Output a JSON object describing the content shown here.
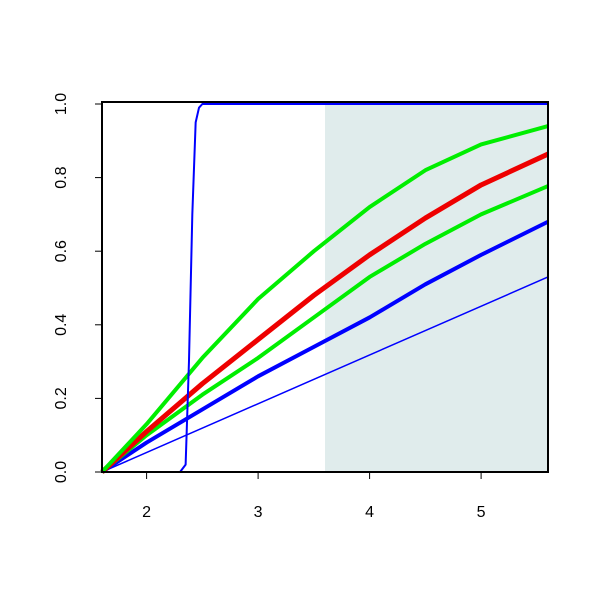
{
  "chart_data": {
    "type": "line",
    "xlim": [
      1.6,
      5.6
    ],
    "ylim": [
      0,
      1
    ],
    "xticks": [
      2,
      3,
      4,
      5
    ],
    "yticks": [
      {
        "value": 0,
        "label": "0.0"
      },
      {
        "value": 0.2,
        "label": "0.2"
      },
      {
        "value": 0.4,
        "label": "0.4"
      },
      {
        "value": 0.6,
        "label": "0.6"
      },
      {
        "value": 0.8,
        "label": "0.8"
      },
      {
        "value": 1,
        "label": "1.0"
      }
    ],
    "shaded_xrange": [
      3.6,
      5.6
    ],
    "shade_color": "#e0ecec",
    "series": [
      {
        "color": "#0000ff",
        "width": 1.5,
        "x": [
          1.6,
          5.6
        ],
        "values": [
          0,
          0.53
        ]
      },
      {
        "color": "#0000ff",
        "width": 4,
        "x": [
          1.6,
          2,
          2.5,
          3,
          3.5,
          4,
          4.5,
          5,
          5.6
        ],
        "values": [
          0,
          0.08,
          0.17,
          0.26,
          0.34,
          0.42,
          0.51,
          0.59,
          0.68
        ]
      },
      {
        "color": "#00ee00",
        "width": 4,
        "x": [
          1.6,
          2,
          2.5,
          3,
          3.5,
          4,
          4.5,
          5,
          5.6
        ],
        "values": [
          0,
          0.1,
          0.21,
          0.31,
          0.42,
          0.53,
          0.62,
          0.7,
          0.777
        ]
      },
      {
        "color": "#ee0000",
        "width": 5,
        "x": [
          1.6,
          2,
          2.5,
          3,
          3.5,
          4,
          4.5,
          5,
          5.6
        ],
        "values": [
          0,
          0.11,
          0.24,
          0.36,
          0.48,
          0.59,
          0.69,
          0.78,
          0.864
        ]
      },
      {
        "color": "#00ee00",
        "width": 4,
        "x": [
          1.6,
          2,
          2.5,
          3,
          3.5,
          4,
          4.5,
          5,
          5.6
        ],
        "values": [
          0,
          0.13,
          0.31,
          0.47,
          0.6,
          0.72,
          0.82,
          0.89,
          0.94
        ]
      },
      {
        "color": "#0000ff",
        "width": 2,
        "x": [
          1.6,
          2.3,
          2.35,
          2.38,
          2.41,
          2.44,
          2.47,
          2.5,
          5.6
        ],
        "values": [
          0,
          0,
          0.02,
          0.3,
          0.7,
          0.95,
          0.99,
          1,
          1
        ]
      }
    ]
  }
}
